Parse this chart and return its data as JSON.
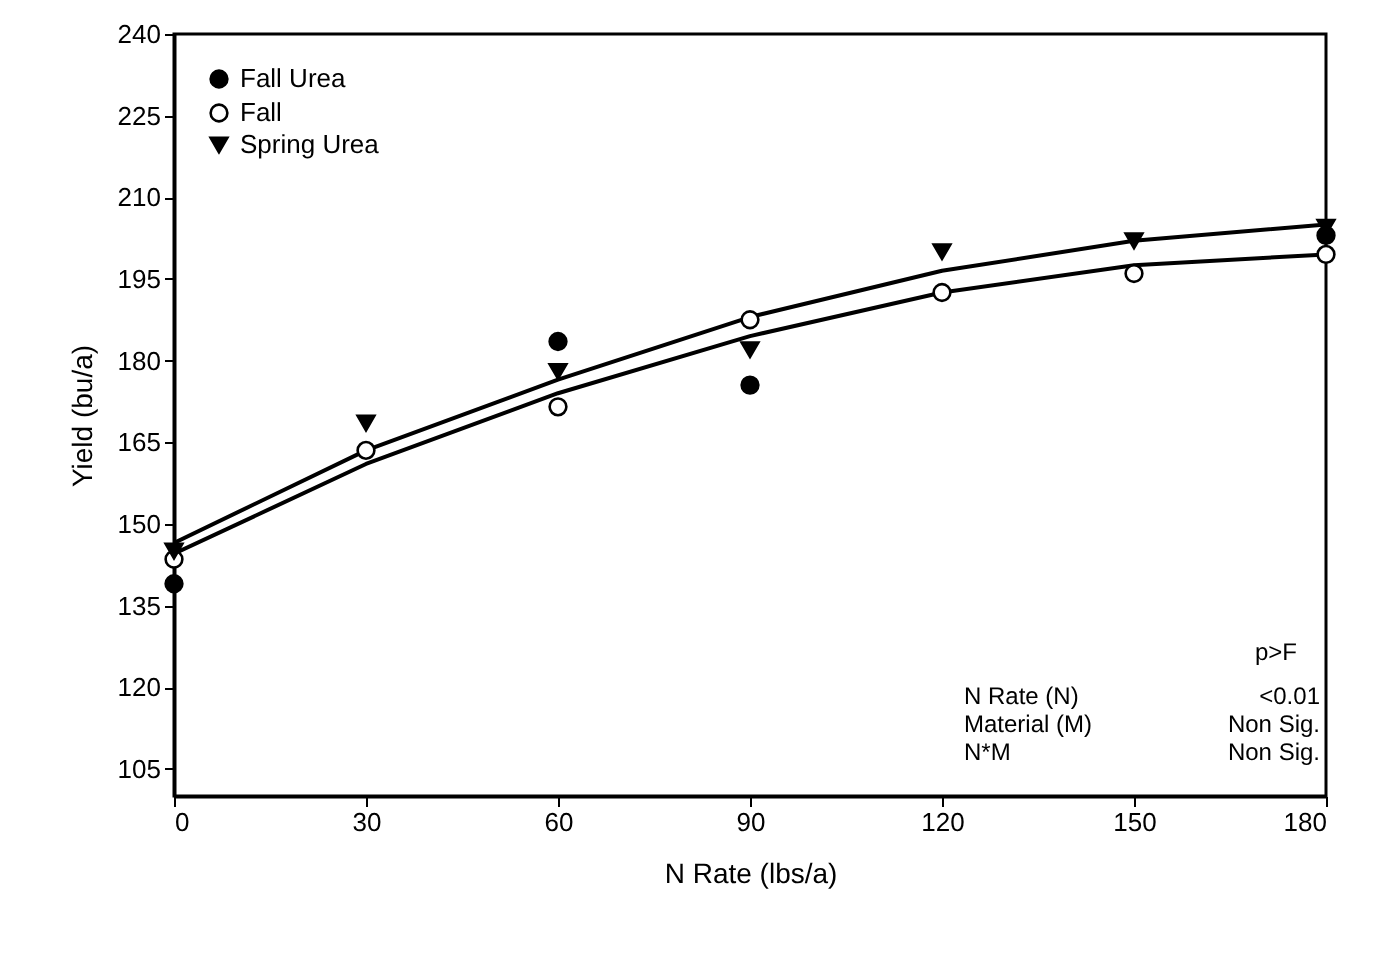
{
  "chart_data": {
    "type": "scatter",
    "xlabel": "N Rate (lbs/a)",
    "ylabel": "Yield (bu/a)",
    "x": [
      0,
      30,
      60,
      90,
      120,
      150,
      180
    ],
    "series": [
      {
        "name": "Fall Urea",
        "color": "#000000",
        "marker": "circle",
        "values": [
          139,
          null,
          183.5,
          175.5,
          null,
          null,
          203
        ]
      },
      {
        "name": "Fall",
        "color": "#ffffff",
        "marker": "circle",
        "values": [
          143.5,
          163.5,
          171.5,
          187.5,
          192.5,
          196,
          199.5
        ]
      },
      {
        "name": "Spring Urea",
        "color": "#000000",
        "marker": "triangle",
        "values": [
          145,
          168.5,
          178,
          182,
          200,
          202,
          204.5
        ]
      },
      {
        "type": "line",
        "color": "#000000",
        "x": [
          0,
          30,
          60,
          90,
          120,
          150,
          180
        ],
        "values": [
          146.5,
          163.5,
          176.5,
          188,
          196.5,
          202,
          205
        ]
      },
      {
        "type": "line",
        "color": "#000000",
        "x": [
          0,
          30,
          60,
          90,
          120,
          150,
          180
        ],
        "values": [
          144.5,
          161,
          174,
          184.5,
          192.5,
          197.5,
          199.5
        ]
      }
    ],
    "xlim": [
      0,
      180
    ],
    "xticks": [
      0,
      30,
      60,
      90,
      120,
      150,
      180
    ],
    "ylim": [
      100,
      240
    ],
    "yticks": [
      105,
      120,
      135,
      150,
      165,
      180,
      195,
      210,
      225,
      240
    ],
    "grid": false,
    "legend": "top left",
    "annotations": [
      "p>F",
      "N Rate (N)",
      "<0.01",
      "Material (M)",
      "Non Sig.",
      "N*M",
      "Non Sig."
    ]
  }
}
